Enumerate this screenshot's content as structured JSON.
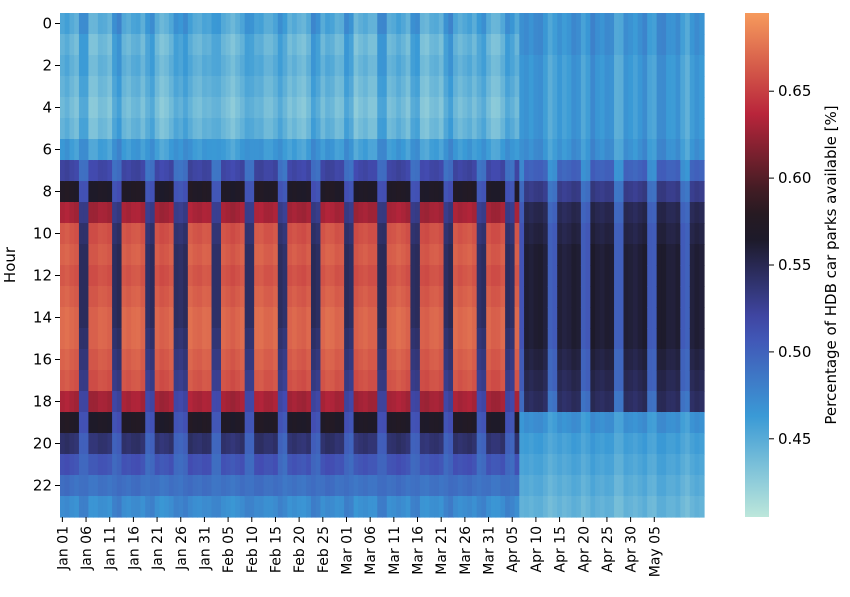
{
  "chart_data": {
    "type": "heatmap",
    "title": "",
    "xlabel": "",
    "ylabel": "Hour",
    "colorbar_label": "Percentage of HDB car parks available [%]",
    "colorbar_ticks": [
      0.45,
      0.5,
      0.55,
      0.6,
      0.65
    ],
    "colorbar_tick_labels": [
      "0.45",
      "0.50",
      "0.55",
      "0.60",
      "0.65"
    ],
    "value_range": [
      0.405,
      0.695
    ],
    "colormap": "icefire",
    "colormap_stops": [
      "#bde7db",
      "#3a9ad6",
      "#434bb1",
      "#1d1a2a",
      "#2a1a1f",
      "#b9253b",
      "#f69a5c"
    ],
    "y_tick_labels": [
      "0",
      "2",
      "4",
      "6",
      "8",
      "10",
      "12",
      "14",
      "16",
      "18",
      "20",
      "22"
    ],
    "hours": 24,
    "x_start_date": "Jan 01",
    "days": 136,
    "x_tick_every_days": 5,
    "x_tick_labels": [
      "Jan 01",
      "Jan 06",
      "Jan 11",
      "Jan 16",
      "Jan 21",
      "Jan 26",
      "Jan 31",
      "Feb 05",
      "Feb 10",
      "Feb 15",
      "Feb 20",
      "Feb 25",
      "Mar 01",
      "Mar 06",
      "Mar 11",
      "Mar 16",
      "Mar 21",
      "Mar 26",
      "Mar 31",
      "Apr 05",
      "Apr 10",
      "Apr 15",
      "Apr 20",
      "Apr 25",
      "Apr 30",
      "May 05"
    ],
    "weekend_day_indices_before_apr07": [
      4,
      5,
      11,
      12,
      18,
      19,
      24,
      25,
      26,
      32,
      33,
      39,
      40,
      46,
      47,
      53,
      54,
      60,
      61,
      67,
      68,
      74,
      75,
      81,
      82,
      88,
      89,
      94,
      95
    ],
    "regime_change_day": 97,
    "hourly_profile_weekday": [
      0.45,
      0.44,
      0.445,
      0.44,
      0.435,
      0.44,
      0.46,
      0.52,
      0.57,
      0.63,
      0.66,
      0.665,
      0.66,
      0.665,
      0.67,
      0.67,
      0.665,
      0.66,
      0.63,
      0.57,
      0.54,
      0.51,
      0.49,
      0.47
    ],
    "hourly_profile_weekend": [
      0.47,
      0.46,
      0.46,
      0.455,
      0.45,
      0.455,
      0.47,
      0.49,
      0.51,
      0.53,
      0.54,
      0.545,
      0.545,
      0.545,
      0.545,
      0.54,
      0.535,
      0.53,
      0.52,
      0.51,
      0.5,
      0.495,
      0.49,
      0.48
    ],
    "hourly_profile_after_regime_change_weekday": [
      0.47,
      0.47,
      0.465,
      0.465,
      0.465,
      0.465,
      0.47,
      0.5,
      0.53,
      0.55,
      0.555,
      0.56,
      0.56,
      0.56,
      0.56,
      0.56,
      0.555,
      0.55,
      0.545,
      0.47,
      0.46,
      0.455,
      0.45,
      0.445
    ],
    "hourly_profile_after_regime_change_weekend": [
      0.46,
      0.46,
      0.455,
      0.455,
      0.455,
      0.455,
      0.46,
      0.47,
      0.49,
      0.5,
      0.505,
      0.505,
      0.505,
      0.505,
      0.505,
      0.505,
      0.5,
      0.5,
      0.49,
      0.46,
      0.455,
      0.45,
      0.445,
      0.44
    ]
  }
}
